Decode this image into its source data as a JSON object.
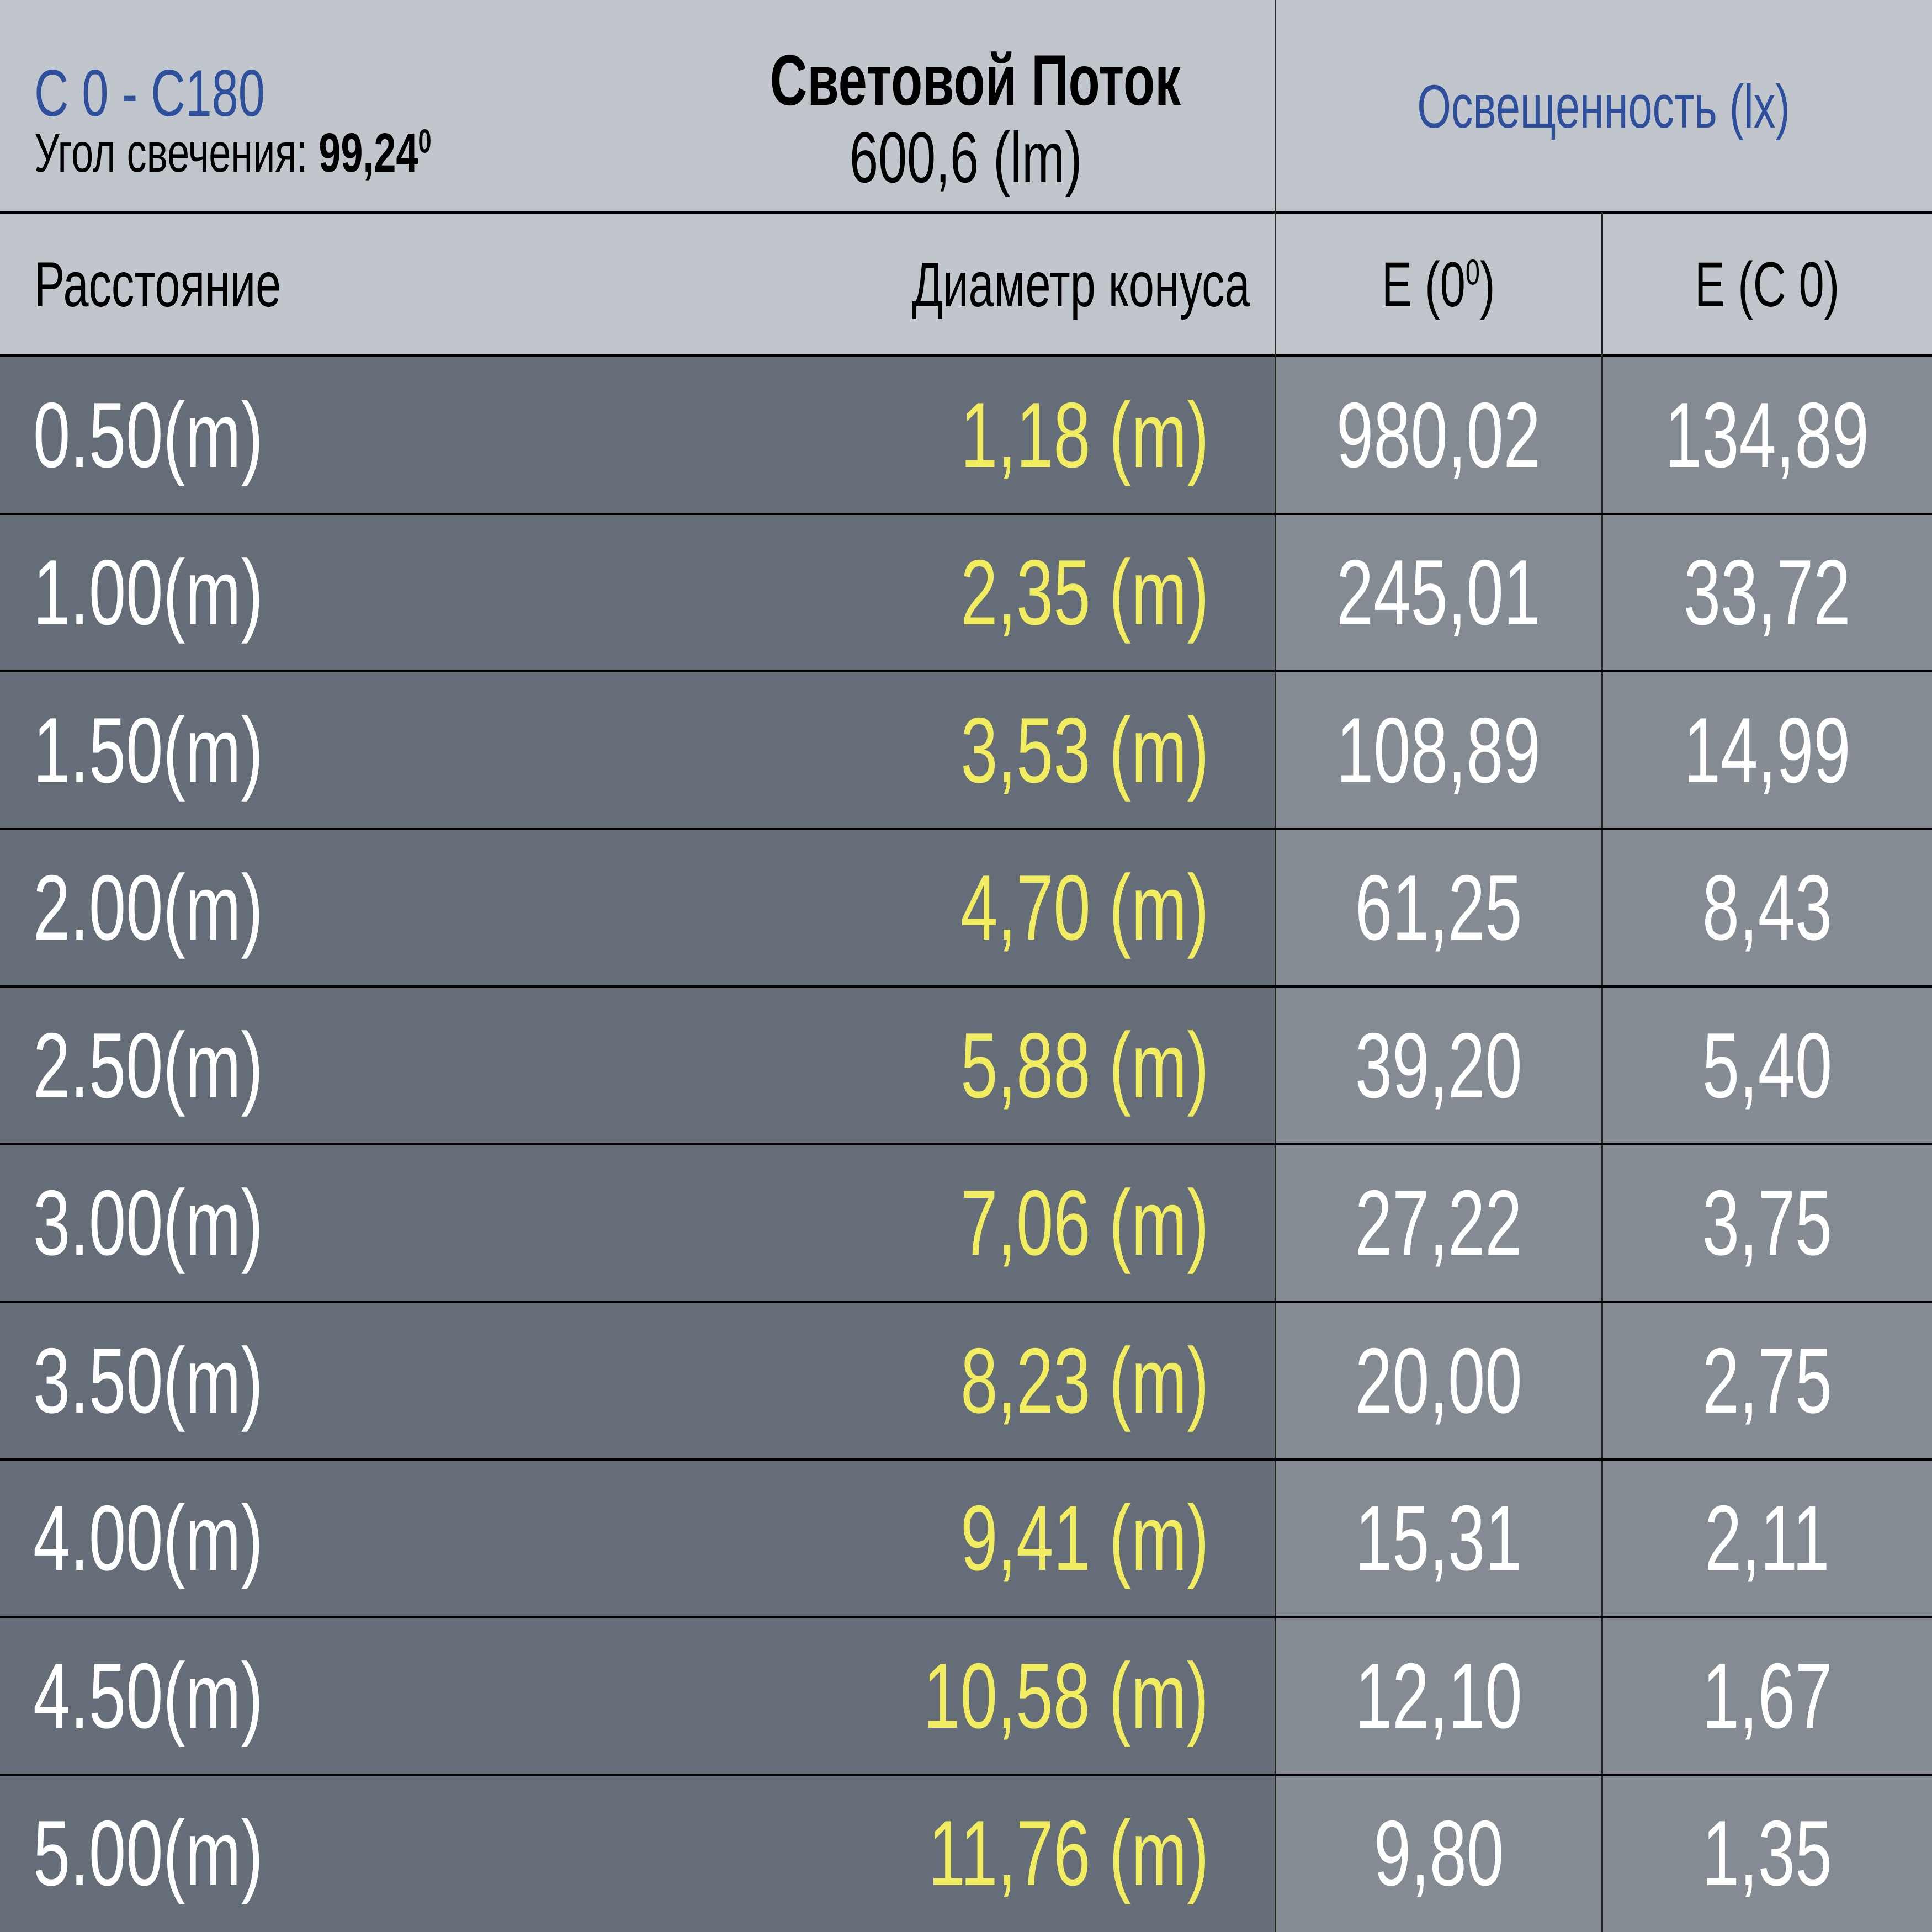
{
  "header": {
    "plane": "C 0 - C180",
    "beam_angle_label": "Угол свечения:",
    "beam_angle_value": "99,24",
    "beam_angle_unit": "0",
    "flux_title": "Световой Поток",
    "flux_value": "600,6 (lm)",
    "illuminance_title": "Освещенность (lx)"
  },
  "columns": {
    "distance": "Расстояние",
    "diameter": "Диаметр конуса",
    "e0": "E (0",
    "e0_sup": "0",
    "e0_close": ")",
    "ec0": "E (C 0)"
  },
  "rows": [
    {
      "distance": "0.50(m)",
      "diameter": "1,18 (m)",
      "e0": "980,02",
      "ec0": "134,89"
    },
    {
      "distance": "1.00(m)",
      "diameter": "2,35 (m)",
      "e0": "245,01",
      "ec0": "33,72"
    },
    {
      "distance": "1.50(m)",
      "diameter": "3,53 (m)",
      "e0": "108,89",
      "ec0": "14,99"
    },
    {
      "distance": "2.00(m)",
      "diameter": "4,70 (m)",
      "e0": "61,25",
      "ec0": "8,43"
    },
    {
      "distance": "2.50(m)",
      "diameter": "5,88 (m)",
      "e0": "39,20",
      "ec0": "5,40"
    },
    {
      "distance": "3.00(m)",
      "diameter": "7,06 (m)",
      "e0": "27,22",
      "ec0": "3,75"
    },
    {
      "distance": "3.50(m)",
      "diameter": "8,23 (m)",
      "e0": "20,00",
      "ec0": "2,75"
    },
    {
      "distance": "4.00(m)",
      "diameter": "9,41 (m)",
      "e0": "15,31",
      "ec0": "2,11"
    },
    {
      "distance": "4.50(m)",
      "diameter": "10,58 (m)",
      "e0": "12,10",
      "ec0": "1,67"
    },
    {
      "distance": "5.00(m)",
      "diameter": "11,76 (m)",
      "e0": "9,80",
      "ec0": "1,35"
    }
  ],
  "colors": {
    "header_bg": "#c1c5cc",
    "dark_bg": "#646d78",
    "value_bg": "#848b93",
    "diameter_text": "#f2ec60",
    "accent_blue": "#2e4f9c"
  }
}
